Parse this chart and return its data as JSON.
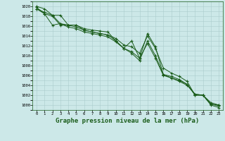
{
  "background_color": "#cce8e8",
  "grid_color": "#aacccc",
  "line_color": "#1a5c1a",
  "xlabel": "Graphe pression niveau de la mer (hPa)",
  "xlabel_fontsize": 6.5,
  "ylim": [
    999,
    1021
  ],
  "xlim": [
    -0.5,
    23.5
  ],
  "yticks": [
    1000,
    1002,
    1004,
    1006,
    1008,
    1010,
    1012,
    1014,
    1016,
    1018,
    1020
  ],
  "xticks": [
    0,
    1,
    2,
    3,
    4,
    5,
    6,
    7,
    8,
    9,
    10,
    11,
    12,
    13,
    14,
    15,
    16,
    17,
    18,
    19,
    20,
    21,
    22,
    23
  ],
  "series": [
    [
      1019.5,
      1018.8,
      1018.2,
      1018.2,
      1016.2,
      1016.2,
      1015.5,
      1015.2,
      1015.0,
      1014.8,
      1013.0,
      1011.5,
      1013.0,
      1009.5,
      1014.5,
      1011.8,
      1006.2,
      1005.8,
      1005.2,
      1004.2,
      1002.2,
      1002.0,
      1000.2,
      1000.0
    ],
    [
      1019.5,
      1018.5,
      1018.0,
      1016.2,
      1016.2,
      1016.2,
      1015.2,
      1014.8,
      1014.5,
      1014.2,
      1013.5,
      1012.2,
      1011.8,
      1010.5,
      1014.0,
      1011.5,
      1007.5,
      1006.5,
      1005.8,
      1004.8,
      1002.0,
      1002.0,
      1000.5,
      1000.0
    ],
    [
      1019.8,
      1018.5,
      1016.2,
      1016.5,
      1015.8,
      1015.5,
      1014.8,
      1014.5,
      1014.2,
      1013.8,
      1012.8,
      1011.5,
      1010.8,
      1009.5,
      1012.5,
      1009.5,
      1006.0,
      1005.5,
      1004.8,
      1004.0,
      1002.2,
      1002.0,
      1000.0,
      999.5
    ],
    [
      1020.0,
      1019.5,
      1018.2,
      1016.5,
      1016.2,
      1015.8,
      1015.2,
      1014.8,
      1014.5,
      1014.2,
      1013.0,
      1011.5,
      1010.5,
      1009.0,
      1013.0,
      1010.0,
      1006.2,
      1005.5,
      1005.0,
      1004.2,
      1002.0,
      1002.0,
      1000.2,
      999.8
    ]
  ]
}
